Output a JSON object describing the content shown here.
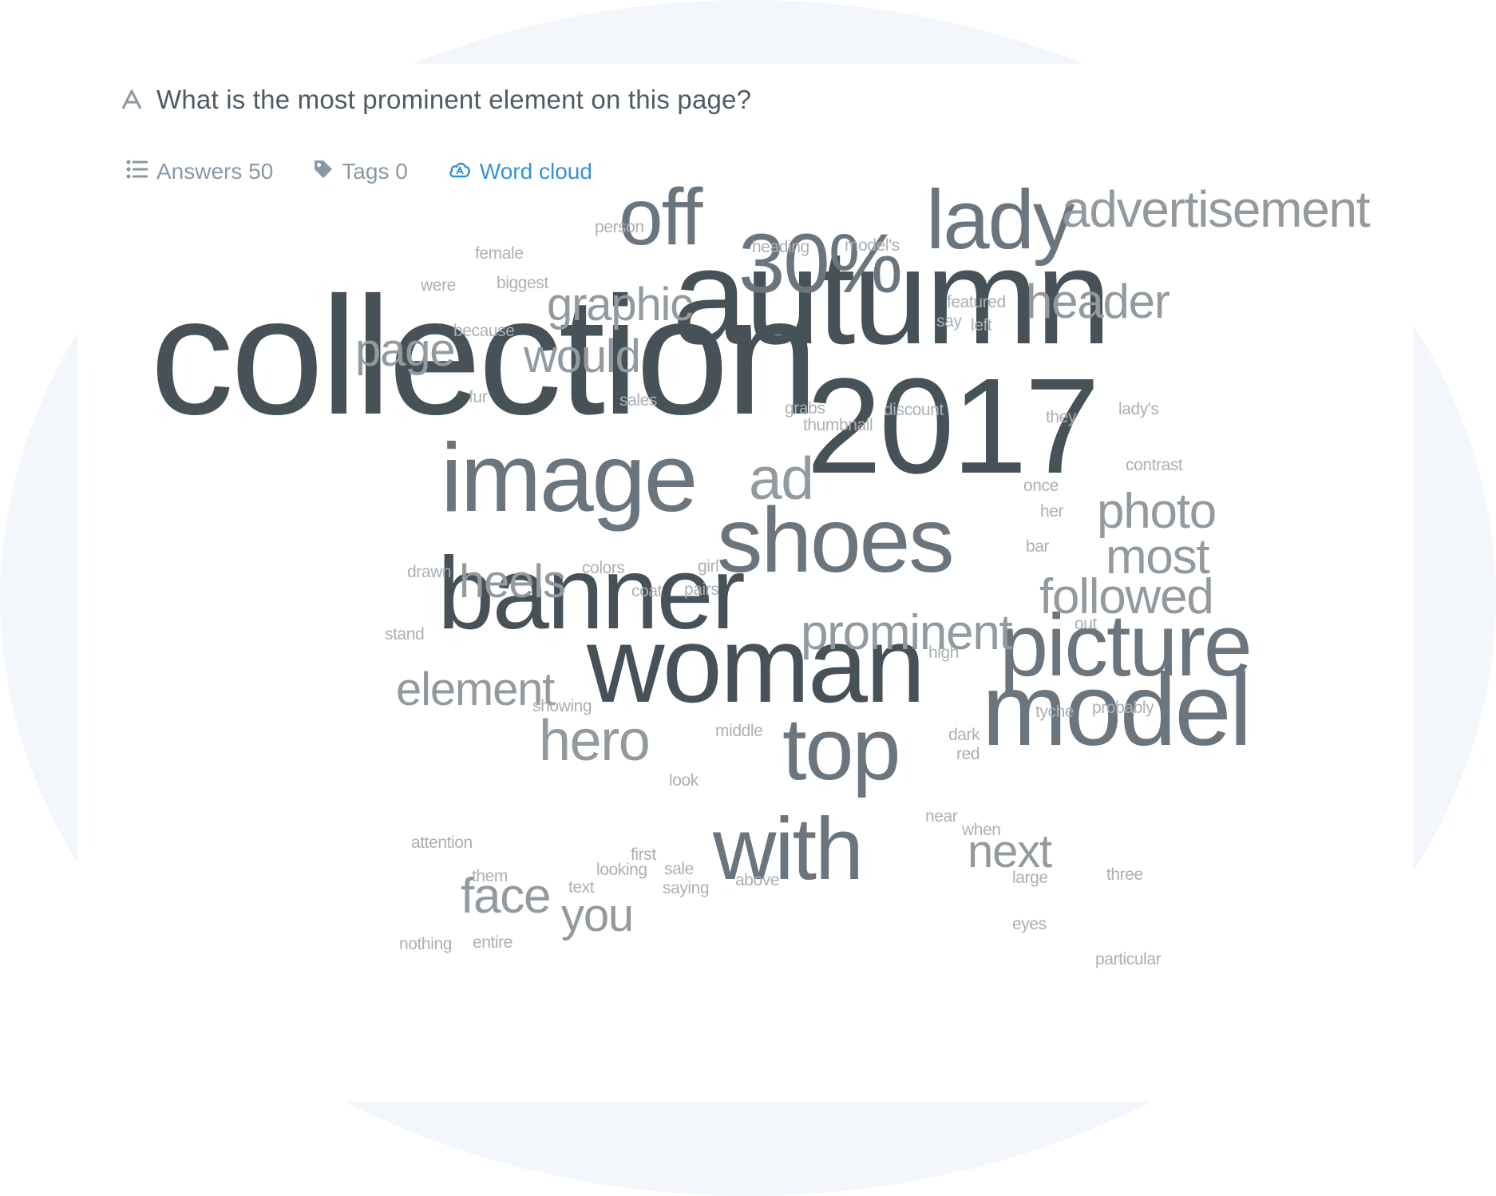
{
  "question": {
    "text": "What is the most prominent element on this page?",
    "icon": "text-answer-icon"
  },
  "tabs": [
    {
      "label": "Answers 50",
      "icon": "list-icon",
      "active": false
    },
    {
      "label": "Tags 0",
      "icon": "tag-icon",
      "active": false
    },
    {
      "label": "Word cloud",
      "icon": "cloud-icon",
      "active": true
    }
  ],
  "colors": {
    "accent": "#3592d6",
    "word_dark": "#475158",
    "word_mid": "#6b757d",
    "word_light": "#939a9f",
    "word_faint": "#aab0b5"
  },
  "word_cloud": [
    {
      "text": "collection"
    },
    {
      "text": "autumn"
    },
    {
      "text": "2017"
    },
    {
      "text": "woman"
    },
    {
      "text": "banner"
    },
    {
      "text": "image"
    },
    {
      "text": "shoes"
    },
    {
      "text": "model"
    },
    {
      "text": "picture"
    },
    {
      "text": "30%"
    },
    {
      "text": "lady"
    },
    {
      "text": "off"
    },
    {
      "text": "top"
    },
    {
      "text": "with"
    },
    {
      "text": "ad"
    },
    {
      "text": "advertisement"
    },
    {
      "text": "header"
    },
    {
      "text": "graphic"
    },
    {
      "text": "page"
    },
    {
      "text": "would"
    },
    {
      "text": "photo"
    },
    {
      "text": "most"
    },
    {
      "text": "followed"
    },
    {
      "text": "prominent"
    },
    {
      "text": "heels"
    },
    {
      "text": "element"
    },
    {
      "text": "hero"
    },
    {
      "text": "next"
    },
    {
      "text": "face"
    },
    {
      "text": "you"
    },
    {
      "text": "person"
    },
    {
      "text": "female"
    },
    {
      "text": "were"
    },
    {
      "text": "biggest"
    },
    {
      "text": "because"
    },
    {
      "text": "heading"
    },
    {
      "text": "model's"
    },
    {
      "text": "featured"
    },
    {
      "text": "say"
    },
    {
      "text": "left"
    },
    {
      "text": "fur"
    },
    {
      "text": "sales"
    },
    {
      "text": "grabs"
    },
    {
      "text": "thumbnail"
    },
    {
      "text": "discount"
    },
    {
      "text": "they"
    },
    {
      "text": "lady's"
    },
    {
      "text": "contrast"
    },
    {
      "text": "once"
    },
    {
      "text": "her"
    },
    {
      "text": "bar"
    },
    {
      "text": "drawn"
    },
    {
      "text": "colors"
    },
    {
      "text": "girl"
    },
    {
      "text": "coat"
    },
    {
      "text": "pairs"
    },
    {
      "text": "stand"
    },
    {
      "text": "out"
    },
    {
      "text": "high"
    },
    {
      "text": "showing"
    },
    {
      "text": "middle"
    },
    {
      "text": "tyche"
    },
    {
      "text": "probably"
    },
    {
      "text": "dark"
    },
    {
      "text": "red"
    },
    {
      "text": "look"
    },
    {
      "text": "near"
    },
    {
      "text": "when"
    },
    {
      "text": "attention"
    },
    {
      "text": "first"
    },
    {
      "text": "them"
    },
    {
      "text": "looking"
    },
    {
      "text": "sale"
    },
    {
      "text": "above"
    },
    {
      "text": "large"
    },
    {
      "text": "three"
    },
    {
      "text": "text"
    },
    {
      "text": "saying"
    },
    {
      "text": "eyes"
    },
    {
      "text": "nothing"
    },
    {
      "text": "entire"
    },
    {
      "text": "particular"
    }
  ]
}
